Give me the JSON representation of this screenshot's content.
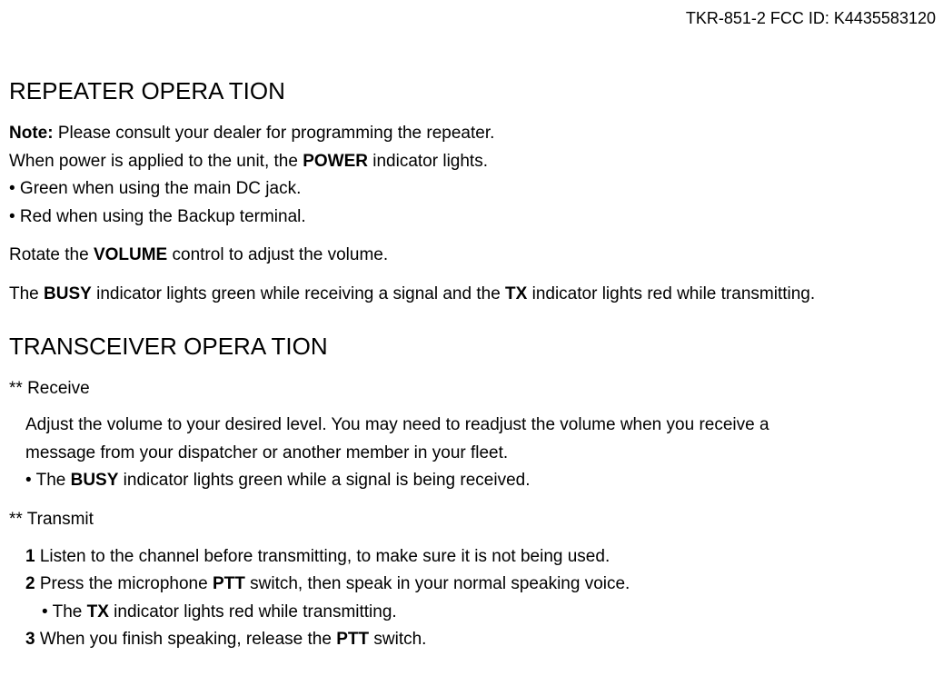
{
  "header": {
    "model_fcc": "TKR-851-2 FCC ID: K4435583120"
  },
  "section1": {
    "title": "REPEATER OPERA TION",
    "note_label": "Note:",
    "note_text": " Please consult your dealer for programming the repeater.",
    "line2_a": "When power is applied to the unit, the ",
    "line2_bold": "POWER",
    "line2_b": " indicator lights.",
    "bullet1": "• Green when using the main DC jack.",
    "bullet2": "• Red when using the Backup terminal.",
    "line3_a": "Rotate the ",
    "line3_bold": "VOLUME",
    "line3_b": " control to adjust the volume.",
    "line4_a": "The ",
    "line4_bold1": "BUSY",
    "line4_b": " indicator lights green while receiving a signal and the ",
    "line4_bold2": "TX",
    "line4_c": " indicator lights red while transmitting."
  },
  "section2": {
    "title": "TRANSCEIVER OPERA TION",
    "recv_heading": "** Receive",
    "recv_line1": "Adjust the volume to your desired level. You may need to readjust the volume when you receive a",
    "recv_line2": "message from your dispatcher or another member in your fleet.",
    "recv_bullet_a": "• The ",
    "recv_bullet_bold": "BUSY",
    "recv_bullet_b": " indicator lights green while a signal is being received.",
    "xmit_heading": "** Transmit",
    "xmit_1_num": "1",
    "xmit_1_text": " Listen to the channel before transmitting, to make sure it is not being used.",
    "xmit_2_num": "2",
    "xmit_2_a": " Press the microphone ",
    "xmit_2_bold": "PTT",
    "xmit_2_b": " switch, then speak in your normal speaking voice.",
    "xmit_2_sub_a": "• The ",
    "xmit_2_sub_bold": "TX",
    "xmit_2_sub_b": " indicator lights red while transmitting.",
    "xmit_3_num": "3",
    "xmit_3_a": " When you finish speaking, release the ",
    "xmit_3_bold": "PTT",
    "xmit_3_b": " switch."
  }
}
